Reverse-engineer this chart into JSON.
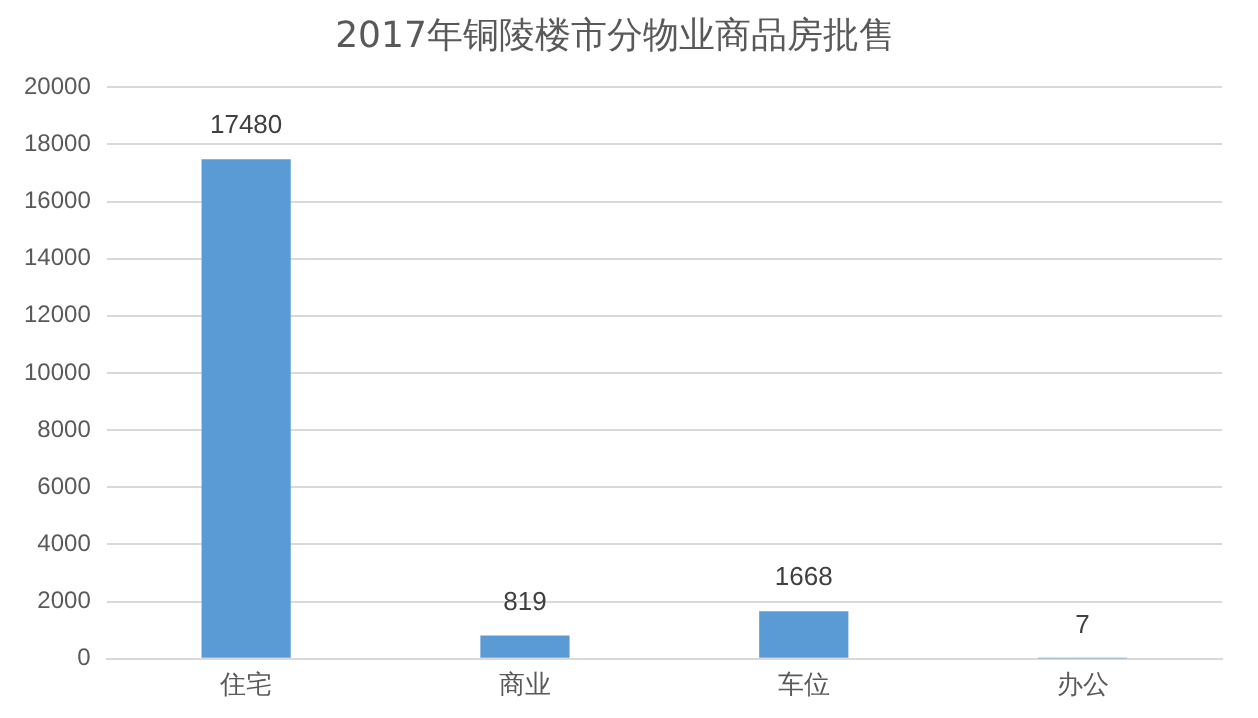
{
  "chart_data": {
    "type": "bar",
    "title": "2017年铜陵楼市分物业商品房批售",
    "categories": [
      "住宅",
      "商业",
      "车位",
      "办公"
    ],
    "values": [
      17480,
      819,
      1668,
      7
    ],
    "color": "#5b9bd5",
    "ylim": [
      0,
      20000
    ],
    "yticks": [
      0,
      2000,
      4000,
      6000,
      8000,
      10000,
      12000,
      14000,
      16000,
      18000,
      20000
    ],
    "grid": "y",
    "data_labels": true,
    "legend": false
  }
}
